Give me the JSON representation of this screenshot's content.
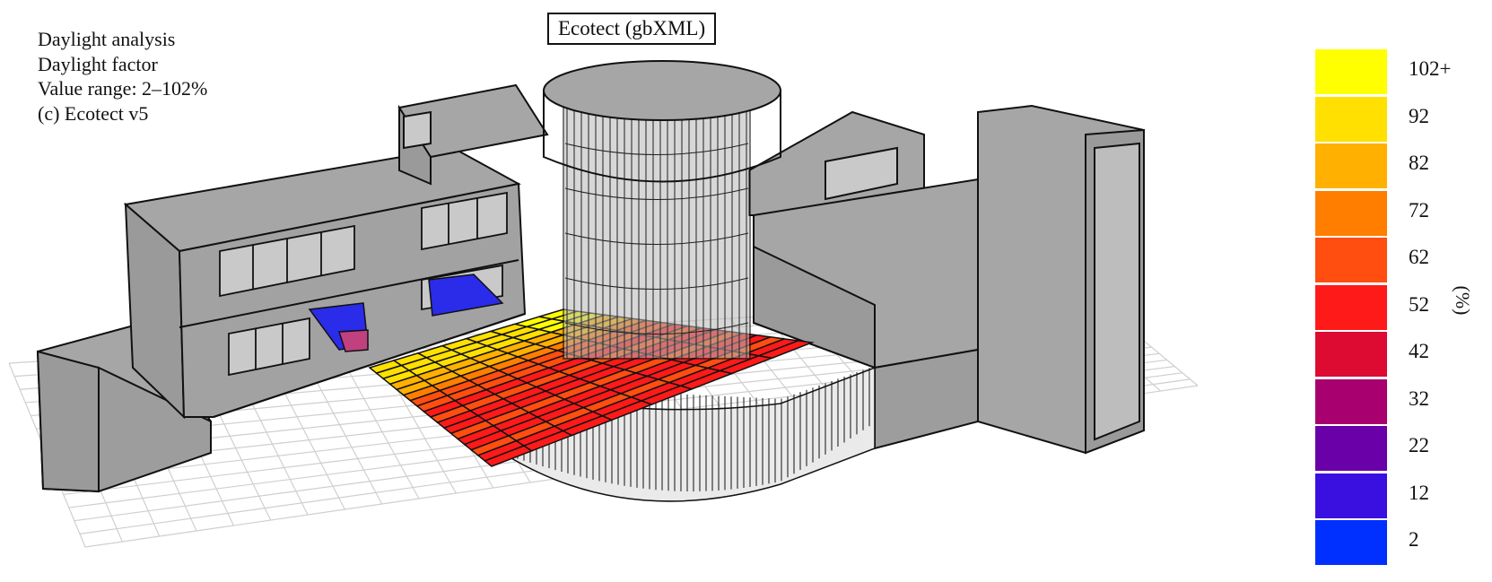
{
  "info": {
    "lines": [
      "Daylight analysis",
      "Daylight factor",
      "Value range: 2–102%",
      "(c) Ecotect v5"
    ]
  },
  "title": "Ecotect (gbXML)",
  "legend": {
    "unit": "(%)",
    "items": [
      {
        "label": "102+",
        "color": "#ffff00"
      },
      {
        "label": "92",
        "color": "#ffe000"
      },
      {
        "label": "82",
        "color": "#ffb000"
      },
      {
        "label": "72",
        "color": "#ff7e00"
      },
      {
        "label": "62",
        "color": "#ff4e10"
      },
      {
        "label": "52",
        "color": "#ff1a1a"
      },
      {
        "label": "42",
        "color": "#dd0a32"
      },
      {
        "label": "32",
        "color": "#a8006e"
      },
      {
        "label": "22",
        "color": "#6a00a8"
      },
      {
        "label": "12",
        "color": "#3a10e0"
      },
      {
        "label": "2",
        "color": "#0030ff"
      }
    ]
  },
  "colors": {
    "building": "#a6a6a6",
    "building_dark": "#8e8e8e",
    "outline": "#111111",
    "window": "#c9c9c9",
    "grid": "#cfcfcf"
  }
}
